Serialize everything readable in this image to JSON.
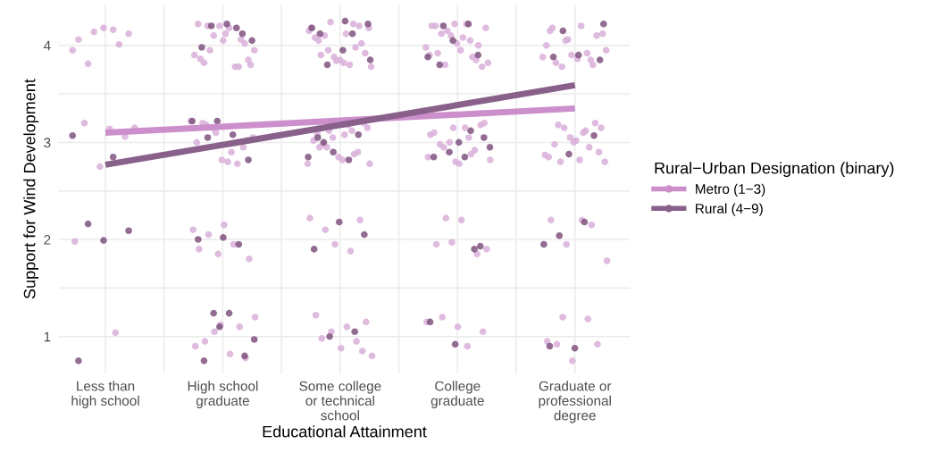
{
  "chart_data": {
    "type": "scatter",
    "xlabel": "Educational Attainment",
    "ylabel": "Support for Wind Development",
    "legend_title": "Rural−Urban Designation (binary)",
    "legend": "right",
    "grid": true,
    "marker": "circle",
    "categories": [
      "Less than\nhigh school",
      "High school\ngraduate",
      "Some college\nor technical\nschool",
      "College\ngraduate",
      "Graduate or\nprofessional\ndegree"
    ],
    "ylim": [
      0.62,
      4.42
    ],
    "yticks": [
      1,
      {
        "value": 1.5,
        "label": null
      },
      2,
      {
        "value": 2.5,
        "label": null
      },
      3,
      {
        "value": 3.5,
        "label": null
      },
      4
    ],
    "series": [
      {
        "color": "#d9b0d9",
        "x": [
          "Less than\nhigh school",
          "Less than\nhigh school",
          "Less than\nhigh school",
          "Less than\nhigh school",
          "Less than\nhigh school",
          "Less than\nhigh school",
          "Less than\nhigh school",
          "Less than\nhigh school",
          "Less than\nhigh school",
          "Less than\nhigh school",
          "Less than\nhigh school",
          "Less than\nhigh school",
          "Less than\nhigh school",
          "Less than\nhigh school",
          "Less than\nhigh school",
          "High school\ngraduate",
          "High school\ngraduate",
          "High school\ngraduate",
          "High school\ngraduate",
          "High school\ngraduate",
          "High school\ngraduate",
          "High school\ngraduate",
          "High school\ngraduate",
          "High school\ngraduate",
          "High school\ngraduate",
          "High school\ngraduate",
          "High school\ngraduate",
          "High school\ngraduate",
          "High school\ngraduate",
          "High school\ngraduate",
          "High school\ngraduate",
          "High school\ngraduate",
          "High school\ngraduate",
          "High school\ngraduate",
          "High school\ngraduate",
          "High school\ngraduate",
          "High school\ngraduate",
          "High school\ngraduate",
          "High school\ngraduate",
          "High school\ngraduate",
          "High school\ngraduate",
          "High school\ngraduate",
          "High school\ngraduate",
          "High school\ngraduate",
          "High school\ngraduate",
          "High school\ngraduate",
          "High school\ngraduate",
          "High school\ngraduate",
          "High school\ngraduate",
          "High school\ngraduate",
          "High school\ngraduate",
          "High school\ngraduate",
          "High school\ngraduate",
          "High school\ngraduate",
          "High school\ngraduate",
          "High school\ngraduate",
          "High school\ngraduate",
          "High school\ngraduate",
          "High school\ngraduate",
          "High school\ngraduate",
          "High school\ngraduate",
          "Some college\nor technical\nschool",
          "Some college\nor technical\nschool",
          "Some college\nor technical\nschool",
          "Some college\nor technical\nschool",
          "Some college\nor technical\nschool",
          "Some college\nor technical\nschool",
          "Some college\nor technical\nschool",
          "Some college\nor technical\nschool",
          "Some college\nor technical\nschool",
          "Some college\nor technical\nschool",
          "Some college\nor technical\nschool",
          "Some college\nor technical\nschool",
          "Some college\nor technical\nschool",
          "Some college\nor technical\nschool",
          "Some college\nor technical\nschool",
          "Some college\nor technical\nschool",
          "Some college\nor technical\nschool",
          "Some college\nor technical\nschool",
          "Some college\nor technical\nschool",
          "Some college\nor technical\nschool",
          "Some college\nor technical\nschool",
          "Some college\nor technical\nschool",
          "Some college\nor technical\nschool",
          "Some college\nor technical\nschool",
          "Some college\nor technical\nschool",
          "Some college\nor technical\nschool",
          "Some college\nor technical\nschool",
          "Some college\nor technical\nschool",
          "Some college\nor technical\nschool",
          "Some college\nor technical\nschool",
          "Some college\nor technical\nschool",
          "Some college\nor technical\nschool",
          "Some college\nor technical\nschool",
          "Some college\nor technical\nschool",
          "Some college\nor technical\nschool",
          "Some college\nor technical\nschool",
          "Some college\nor technical\nschool",
          "Some college\nor technical\nschool",
          "Some college\nor technical\nschool",
          "Some college\nor technical\nschool",
          "Some college\nor technical\nschool",
          "Some college\nor technical\nschool",
          "Some college\nor technical\nschool",
          "Some college\nor technical\nschool",
          "Some college\nor technical\nschool",
          "Some college\nor technical\nschool",
          "Some college\nor technical\nschool",
          "Some college\nor technical\nschool",
          "Some college\nor technical\nschool",
          "Some college\nor technical\nschool",
          "Some college\nor technical\nschool",
          "Some college\nor technical\nschool",
          "Some college\nor technical\nschool",
          "College\ngraduate",
          "College\ngraduate",
          "College\ngraduate",
          "College\ngraduate",
          "College\ngraduate",
          "College\ngraduate",
          "College\ngraduate",
          "College\ngraduate",
          "College\ngraduate",
          "College\ngraduate",
          "College\ngraduate",
          "College\ngraduate",
          "College\ngraduate",
          "College\ngraduate",
          "College\ngraduate",
          "College\ngraduate",
          "College\ngraduate",
          "College\ngraduate",
          "College\ngraduate",
          "College\ngraduate",
          "College\ngraduate",
          "College\ngraduate",
          "College\ngraduate",
          "College\ngraduate",
          "College\ngraduate",
          "College\ngraduate",
          "College\ngraduate",
          "College\ngraduate",
          "College\ngraduate",
          "College\ngraduate",
          "College\ngraduate",
          "College\ngraduate",
          "College\ngraduate",
          "College\ngraduate",
          "College\ngraduate",
          "College\ngraduate",
          "College\ngraduate",
          "College\ngraduate",
          "College\ngraduate",
          "College\ngraduate",
          "College\ngraduate",
          "College\ngraduate",
          "College\ngraduate",
          "College\ngraduate",
          "College\ngraduate",
          "College\ngraduate",
          "College\ngraduate",
          "College\ngraduate",
          "Graduate or\nprofessional\ndegree",
          "Graduate or\nprofessional\ndegree",
          "Graduate or\nprofessional\ndegree",
          "Graduate or\nprofessional\ndegree",
          "Graduate or\nprofessional\ndegree",
          "Graduate or\nprofessional\ndegree",
          "Graduate or\nprofessional\ndegree",
          "Graduate or\nprofessional\ndegree",
          "Graduate or\nprofessional\ndegree",
          "Graduate or\nprofessional\ndegree",
          "Graduate or\nprofessional\ndegree",
          "Graduate or\nprofessional\ndegree",
          "Graduate or\nprofessional\ndegree",
          "Graduate or\nprofessional\ndegree",
          "Graduate or\nprofessional\ndegree",
          "Graduate or\nprofessional\ndegree",
          "Graduate or\nprofessional\ndegree",
          "Graduate or\nprofessional\ndegree",
          "Graduate or\nprofessional\ndegree",
          "Graduate or\nprofessional\ndegree",
          "Graduate or\nprofessional\ndegree",
          "Graduate or\nprofessional\ndegree",
          "Graduate or\nprofessional\ndegree",
          "Graduate or\nprofessional\ndegree",
          "Graduate or\nprofessional\ndegree",
          "Graduate or\nprofessional\ndegree",
          "Graduate or\nprofessional\ndegree",
          "Graduate or\nprofessional\ndegree",
          "Graduate or\nprofessional\ndegree",
          "Graduate or\nprofessional\ndegree",
          "Graduate or\nprofessional\ndegree",
          "Graduate or\nprofessional\ndegree",
          "Graduate or\nprofessional\ndegree",
          "Graduate or\nprofessional\ndegree",
          "Graduate or\nprofessional\ndegree",
          "Graduate or\nprofessional\ndegree",
          "Graduate or\nprofessional\ndegree",
          "Graduate or\nprofessional\ndegree",
          "Graduate or\nprofessional\ndegree",
          "Graduate or\nprofessional\ndegree",
          "Graduate or\nprofessional\ndegree",
          "Graduate or\nprofessional\ndegree",
          "Graduate or\nprofessional\ndegree",
          "Graduate or\nprofessional\ndegree",
          "Graduate or\nprofessional\ndegree"
        ],
        "values": [
          3.95,
          4.16,
          3.81,
          4.12,
          4.18,
          4.06,
          4.01,
          4.14,
          3.15,
          3.14,
          3.2,
          3.06,
          2.75,
          1.98,
          1.04,
          4.2,
          3.85,
          4.05,
          4.22,
          3.78,
          4.1,
          3.95,
          4.18,
          3.82,
          4.02,
          4.2,
          3.9,
          3.78,
          3.95,
          3.8,
          4.12,
          3.86,
          4.06,
          3.1,
          3.22,
          2.9,
          3.18,
          3.02,
          2.82,
          3.0,
          2.78,
          3.15,
          3.05,
          2.8,
          3.2,
          2.95,
          1.85,
          2.1,
          1.95,
          2.05,
          1.8,
          2.15,
          1.9,
          1.1,
          1.05,
          1.2,
          0.82,
          0.95,
          0.78,
          1.12,
          0.9,
          4.22,
          3.95,
          4.18,
          3.82,
          4.05,
          4.2,
          3.88,
          4.15,
          3.8,
          4.1,
          3.92,
          3.85,
          4.08,
          3.98,
          4.24,
          3.78,
          4.12,
          3.9,
          4.02,
          3.84,
          4.18,
          3.12,
          2.95,
          3.15,
          2.82,
          3.1,
          2.9,
          3.05,
          2.78,
          3.18,
          2.98,
          3.2,
          2.85,
          3.02,
          2.88,
          3.12,
          2.78,
          3.08,
          2.95,
          2.2,
          1.95,
          2.22,
          1.88,
          2.1,
          1.15,
          0.88,
          1.22,
          0.95,
          1.05,
          0.8,
          1.1,
          0.98,
          0.85,
          4.22,
          3.9,
          4.05,
          3.8,
          4.18,
          3.95,
          4.2,
          3.85,
          4.1,
          3.98,
          4.22,
          4.12,
          3.78,
          4.02,
          4.2,
          3.88,
          4.15,
          3.82,
          4.08,
          3.92,
          4.0,
          3.15,
          2.85,
          3.05,
          2.95,
          3.2,
          2.78,
          3.1,
          2.92,
          3.0,
          2.82,
          3.15,
          2.98,
          3.18,
          2.8,
          3.08,
          2.88,
          2.22,
          1.9,
          2.2,
          1.95,
          1.85,
          1.97,
          1.15,
          0.9,
          1.2,
          1.05,
          1.1,
          4.15,
          3.85,
          4.05,
          3.95,
          4.2,
          3.82,
          4.1,
          3.9,
          4.0,
          3.92,
          3.78,
          4.12,
          3.86,
          4.18,
          3.8,
          4.06,
          3.88,
          3.1,
          3.18,
          2.9,
          3.0,
          2.85,
          2.95,
          3.15,
          2.8,
          2.82,
          2.98,
          3.2,
          3.05,
          2.87,
          3.12,
          2.8,
          3.15,
          3.02,
          2.2,
          2.15,
          1.95,
          1.78,
          2.2,
          0.92,
          0.92,
          0.75,
          0.95,
          1.18,
          1.2
        ]
      },
      {
        "color": "#80527f",
        "x": [
          "Less than\nhigh school",
          "Less than\nhigh school",
          "Less than\nhigh school",
          "Less than\nhigh school",
          "Less than\nhigh school",
          "Less than\nhigh school",
          "High school\ngraduate",
          "High school\ngraduate",
          "High school\ngraduate",
          "High school\ngraduate",
          "High school\ngraduate",
          "High school\ngraduate",
          "High school\ngraduate",
          "High school\ngraduate",
          "High school\ngraduate",
          "High school\ngraduate",
          "High school\ngraduate",
          "High school\ngraduate",
          "High school\ngraduate",
          "High school\ngraduate",
          "High school\ngraduate",
          "High school\ngraduate",
          "High school\ngraduate",
          "High school\ngraduate",
          "High school\ngraduate",
          "High school\ngraduate",
          "Some college\nor technical\nschool",
          "Some college\nor technical\nschool",
          "Some college\nor technical\nschool",
          "Some college\nor technical\nschool",
          "Some college\nor technical\nschool",
          "Some college\nor technical\nschool",
          "Some college\nor technical\nschool",
          "Some college\nor technical\nschool",
          "Some college\nor technical\nschool",
          "Some college\nor technical\nschool",
          "Some college\nor technical\nschool",
          "Some college\nor technical\nschool",
          "Some college\nor technical\nschool",
          "Some college\nor technical\nschool",
          "Some college\nor technical\nschool",
          "Some college\nor technical\nschool",
          "Some college\nor technical\nschool",
          "Some college\nor technical\nschool",
          "Some college\nor technical\nschool",
          "College\ngraduate",
          "College\ngraduate",
          "College\ngraduate",
          "College\ngraduate",
          "College\ngraduate",
          "College\ngraduate",
          "College\ngraduate",
          "College\ngraduate",
          "College\ngraduate",
          "College\ngraduate",
          "College\ngraduate",
          "College\ngraduate",
          "College\ngraduate",
          "College\ngraduate",
          "College\ngraduate",
          "College\ngraduate",
          "College\ngraduate",
          "Graduate or\nprofessional\ndegree",
          "Graduate or\nprofessional\ndegree",
          "Graduate or\nprofessional\ndegree",
          "Graduate or\nprofessional\ndegree",
          "Graduate or\nprofessional\ndegree",
          "Graduate or\nprofessional\ndegree",
          "Graduate or\nprofessional\ndegree",
          "Graduate or\nprofessional\ndegree",
          "Graduate or\nprofessional\ndegree",
          "Graduate or\nprofessional\ndegree",
          "Graduate or\nprofessional\ndegree",
          "Graduate or\nprofessional\ndegree"
        ],
        "values": [
          3.07,
          2.85,
          2.16,
          2.09,
          1.99,
          0.75,
          4.18,
          4.2,
          4.05,
          4.22,
          3.98,
          4.12,
          3.22,
          3.22,
          3.08,
          3.05,
          2.82,
          2.02,
          2.0,
          1.95,
          1.24,
          0.97,
          1.24,
          0.75,
          0.8,
          1.1,
          4.18,
          4.12,
          3.8,
          4.22,
          3.95,
          3.05,
          3.08,
          2.9,
          2.85,
          2.82,
          3.0,
          2.05,
          2.18,
          1.9,
          1.05,
          1.0,
          3.85,
          4.25,
          4.12,
          3.9,
          4.05,
          3.88,
          4.22,
          4.2,
          3.05,
          3.0,
          2.85,
          1.9,
          2.9,
          2.95,
          2.85,
          3.8,
          1.93,
          0.92,
          1.15,
          3.12,
          4.15,
          4.22,
          3.9,
          3.88,
          3.07,
          2.88,
          1.95,
          2.18,
          2.04,
          3.85,
          0.88,
          0.9
        ]
      },
      {
        "type": "line",
        "marker": "none",
        "name": "Metro (1−3)",
        "color": "#cc8fcc",
        "x": [
          "Less than\nhigh school",
          "Graduate or\nprofessional\ndegree"
        ],
        "values": [
          3.1,
          3.35
        ]
      },
      {
        "type": "line",
        "marker": "none",
        "name": "Rural (4−9)",
        "color": "#88608a",
        "x": [
          "Less than\nhigh school",
          "Graduate or\nprofessional\ndegree"
        ],
        "values": [
          2.77,
          3.59
        ]
      }
    ]
  }
}
